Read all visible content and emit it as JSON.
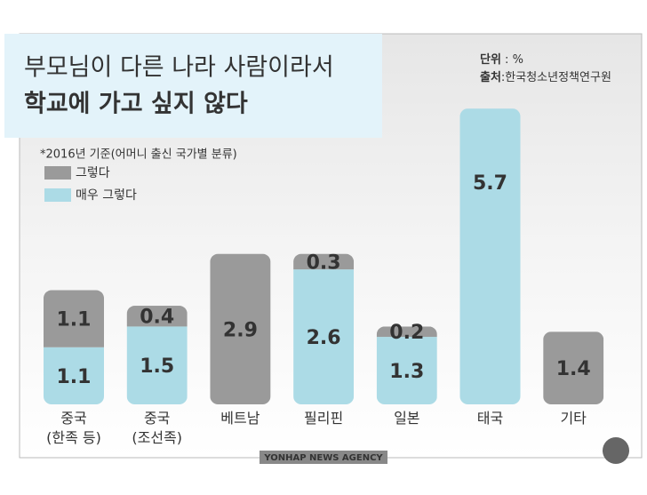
{
  "chart_data": {
    "type": "stacked-bar",
    "title": "부모님이 다른 나라 사람이라서",
    "subtitle": "학교에 가고 싶지 않다",
    "unit": {
      "label": "단위",
      "text": " : %"
    },
    "source": {
      "label": "출처",
      "text": ":한국청소년정책연구원"
    },
    "note": "*2016년 기준(어머니 출신 국가별 분류)",
    "footer": "YONHAP NEWS AGENCY",
    "categories": [
      "중국\n(한족 등)",
      "중국\n(조선족)",
      "베트남",
      "필리핀",
      "일본",
      "태국",
      "기타"
    ],
    "series": [
      {
        "name": "그렇다",
        "color": "#9a9a9a",
        "values": [
          1.1,
          0.4,
          2.9,
          0.3,
          0.2,
          null,
          1.4
        ]
      },
      {
        "name": "매우 그렇다",
        "color": "#acdbe6",
        "values": [
          1.1,
          1.5,
          null,
          2.6,
          1.3,
          5.7,
          null
        ]
      }
    ]
  }
}
